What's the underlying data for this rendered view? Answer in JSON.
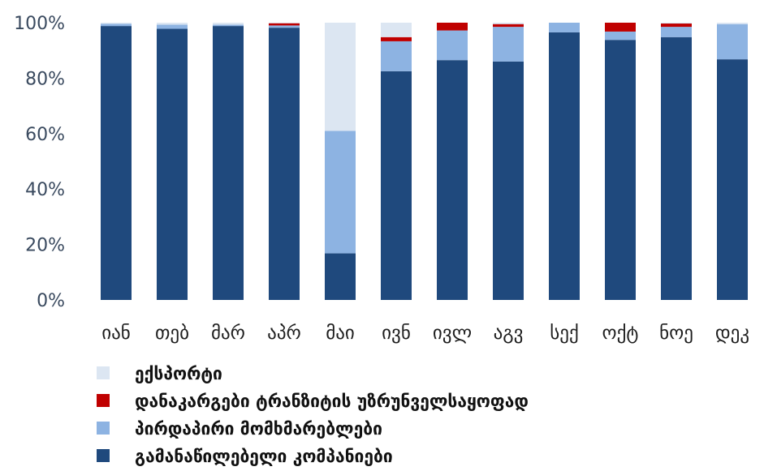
{
  "chart_data": {
    "type": "bar",
    "stacked": true,
    "normalized": true,
    "categories": [
      "იან",
      "თებ",
      "მარ",
      "აპრ",
      "მაი",
      "ივნ",
      "ივლ",
      "აგვ",
      "სექ",
      "ოქტ",
      "ნოე",
      "დეკ"
    ],
    "ylim": [
      0,
      100
    ],
    "yticks": [
      "0%",
      "20%",
      "40%",
      "60%",
      "80%",
      "100%"
    ],
    "grid": false,
    "legend_position": "bottom",
    "series": [
      {
        "name": "გამანაწილებელი კომპანიები",
        "color": "#1f497d",
        "values": [
          98.8,
          97.8,
          98.8,
          98.2,
          16.8,
          82.5,
          86.5,
          86.0,
          96.5,
          93.8,
          94.8,
          86.8
        ]
      },
      {
        "name": "პირდაპირი მომხმარებლები",
        "color": "#8db3e2",
        "values": [
          0.8,
          1.5,
          0.5,
          0.8,
          44.2,
          10.8,
          10.7,
          12.5,
          3.5,
          3.0,
          3.7,
          12.7
        ]
      },
      {
        "name": "დანაკარგები ტრანზიტის უზრუნველსაყოფად",
        "color": "#c00000",
        "values": [
          0,
          0,
          0,
          0.8,
          0,
          1.5,
          2.8,
          1.0,
          0,
          3.2,
          1.2,
          0
        ]
      },
      {
        "name": "ექსპორტი",
        "color": "#dce6f2",
        "values": [
          0.4,
          0.7,
          0.7,
          0.2,
          39.0,
          5.2,
          0,
          0.5,
          0,
          0,
          0.3,
          0.5
        ]
      }
    ],
    "legend_order": [
      3,
      2,
      1,
      0
    ]
  }
}
